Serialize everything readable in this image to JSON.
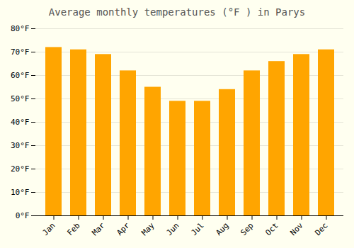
{
  "chart_data": {
    "type": "bar",
    "title": "Average monthly temperatures (°F ) in Parys",
    "categories": [
      "Jan",
      "Feb",
      "Mar",
      "Apr",
      "May",
      "Jun",
      "Jul",
      "Aug",
      "Sep",
      "Oct",
      "Nov",
      "Dec"
    ],
    "values": [
      72,
      71,
      69,
      62,
      55,
      49,
      49,
      54,
      62,
      66,
      69,
      71
    ],
    "color": "#FFA500",
    "ylim": [
      0,
      80
    ],
    "yticks": [
      {
        "value": 0,
        "label": "0°F"
      },
      {
        "value": 10,
        "label": "10°F"
      },
      {
        "value": 20,
        "label": "20°F"
      },
      {
        "value": 30,
        "label": "30°F"
      },
      {
        "value": 40,
        "label": "40°F"
      },
      {
        "value": 50,
        "label": "50°F"
      },
      {
        "value": 60,
        "label": "60°F"
      },
      {
        "value": 70,
        "label": "70°F"
      },
      {
        "value": 80,
        "label": "80°F"
      }
    ],
    "grid": true
  }
}
